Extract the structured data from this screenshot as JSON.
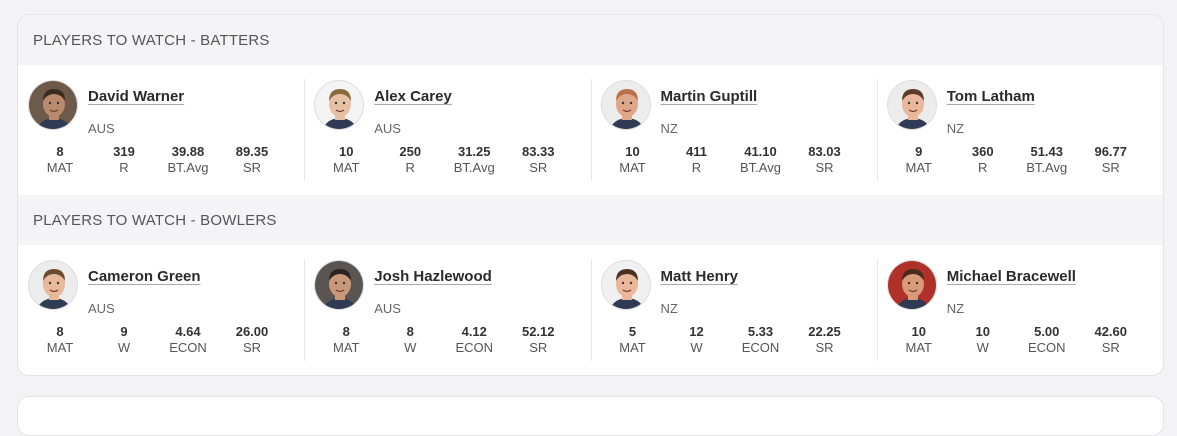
{
  "batters": {
    "title": "PLAYERS TO WATCH - BATTERS",
    "players": [
      {
        "name": "David Warner",
        "team": "AUS",
        "skin": "#b98a6e",
        "hair": "#3a2a20",
        "bg": "#6d5a4b",
        "stats": [
          {
            "value": "8",
            "label": "MAT"
          },
          {
            "value": "319",
            "label": "R"
          },
          {
            "value": "39.88",
            "label": "BT.Avg"
          },
          {
            "value": "89.35",
            "label": "SR"
          }
        ]
      },
      {
        "name": "Alex Carey",
        "team": "AUS",
        "skin": "#e6c1a3",
        "hair": "#8a6a3c",
        "bg": "#f4f4f4",
        "stats": [
          {
            "value": "10",
            "label": "MAT"
          },
          {
            "value": "250",
            "label": "R"
          },
          {
            "value": "31.25",
            "label": "BT.Avg"
          },
          {
            "value": "83.33",
            "label": "SR"
          }
        ]
      },
      {
        "name": "Martin Guptill",
        "team": "NZ",
        "skin": "#e0a68a",
        "hair": "#b8724a",
        "bg": "#ececec",
        "stats": [
          {
            "value": "10",
            "label": "MAT"
          },
          {
            "value": "411",
            "label": "R"
          },
          {
            "value": "41.10",
            "label": "BT.Avg"
          },
          {
            "value": "83.03",
            "label": "SR"
          }
        ]
      },
      {
        "name": "Tom Latham",
        "team": "NZ",
        "skin": "#e8b79c",
        "hair": "#5a3a28",
        "bg": "#ececec",
        "stats": [
          {
            "value": "9",
            "label": "MAT"
          },
          {
            "value": "360",
            "label": "R"
          },
          {
            "value": "51.43",
            "label": "BT.Avg"
          },
          {
            "value": "96.77",
            "label": "SR"
          }
        ]
      }
    ]
  },
  "bowlers": {
    "title": "PLAYERS TO WATCH - BOWLERS",
    "players": [
      {
        "name": "Cameron Green",
        "team": "AUS",
        "skin": "#e8b89a",
        "hair": "#6b4a30",
        "bg": "#ececec",
        "stats": [
          {
            "value": "8",
            "label": "MAT"
          },
          {
            "value": "9",
            "label": "W"
          },
          {
            "value": "4.64",
            "label": "ECON"
          },
          {
            "value": "26.00",
            "label": "SR"
          }
        ]
      },
      {
        "name": "Josh Hazlewood",
        "team": "AUS",
        "skin": "#c9987a",
        "hair": "#2a2420",
        "bg": "#5a5550",
        "stats": [
          {
            "value": "8",
            "label": "MAT"
          },
          {
            "value": "8",
            "label": "W"
          },
          {
            "value": "4.12",
            "label": "ECON"
          },
          {
            "value": "52.12",
            "label": "SR"
          }
        ]
      },
      {
        "name": "Matt Henry",
        "team": "NZ",
        "skin": "#eab79a",
        "hair": "#4a3020",
        "bg": "#f0f0f0",
        "stats": [
          {
            "value": "5",
            "label": "MAT"
          },
          {
            "value": "12",
            "label": "W"
          },
          {
            "value": "5.33",
            "label": "ECON"
          },
          {
            "value": "22.25",
            "label": "SR"
          }
        ]
      },
      {
        "name": "Michael Bracewell",
        "team": "NZ",
        "skin": "#d99a7a",
        "hair": "#4a2a1a",
        "bg": "#b0302a",
        "stats": [
          {
            "value": "10",
            "label": "MAT"
          },
          {
            "value": "10",
            "label": "W"
          },
          {
            "value": "5.00",
            "label": "ECON"
          },
          {
            "value": "42.60",
            "label": "SR"
          }
        ]
      }
    ]
  }
}
